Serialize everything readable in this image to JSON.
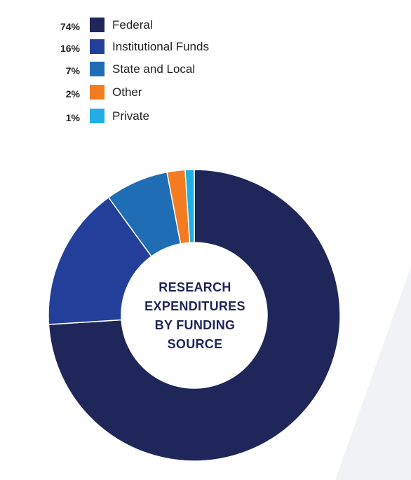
{
  "colors": {
    "background": "#ffffff",
    "bg_shape": "#f1f2f6",
    "center": "#ffffff",
    "title": "#1f2459"
  },
  "chart_data": {
    "type": "pie",
    "donut": true,
    "title_lines": [
      "RESEARCH",
      "EXPENDITURES",
      "BY FUNDING",
      "SOURCE"
    ],
    "legend_placement": "top-left",
    "slices": [
      {
        "label": "Federal",
        "value": 74,
        "pct_label": "74%",
        "color": "#1f2659"
      },
      {
        "label": "Institutional Funds",
        "value": 16,
        "pct_label": "16%",
        "color": "#243f9a"
      },
      {
        "label": "State and Local",
        "value": 7,
        "pct_label": "7%",
        "color": "#1f6db4"
      },
      {
        "label": "Other",
        "value": 2,
        "pct_label": "2%",
        "color": "#f47c20"
      },
      {
        "label": "Private",
        "value": 1,
        "pct_label": "1%",
        "color": "#21ade6"
      }
    ]
  }
}
